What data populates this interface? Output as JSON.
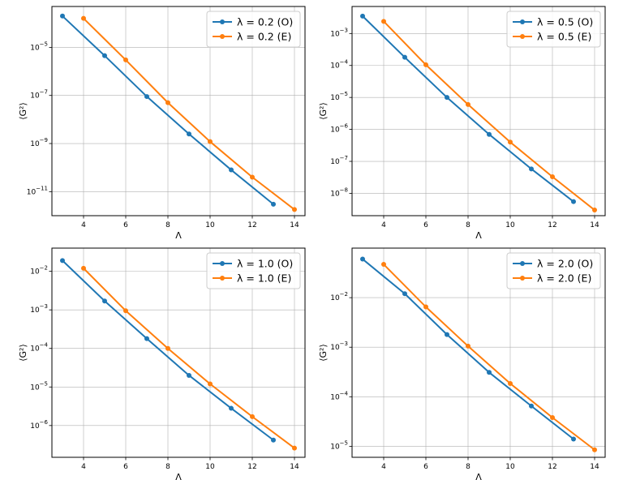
{
  "chart_data": [
    {
      "type": "line",
      "title": "",
      "xlabel": "Λ",
      "ylabel": "⟨G²⟩",
      "xlim": [
        2.5,
        14.5
      ],
      "ylim": [
        1e-12,
        0.0005
      ],
      "yscale": "log",
      "grid": true,
      "legend_position": "top-right",
      "x_ticks": [
        4,
        6,
        8,
        10,
        12,
        14
      ],
      "y_tick_exponents": [
        -5,
        -7,
        -9,
        -11
      ],
      "series": [
        {
          "name": "λ = 0.2 (O)",
          "color": "#1f77b4",
          "x": [
            3,
            5,
            7,
            9,
            11,
            13
          ],
          "y": [
            0.0002,
            4.5e-06,
            9e-08,
            2.5e-09,
            8e-11,
            3e-12
          ]
        },
        {
          "name": "λ = 0.2 (E)",
          "color": "#ff7f0e",
          "x": [
            4,
            6,
            8,
            10,
            12,
            14
          ],
          "y": [
            0.00016,
            3e-06,
            5e-08,
            1.2e-09,
            4e-11,
            1.8e-12
          ]
        }
      ]
    },
    {
      "type": "line",
      "title": "",
      "xlabel": "Λ",
      "ylabel": "⟨G²⟩",
      "xlim": [
        2.5,
        14.5
      ],
      "ylim": [
        2e-09,
        0.007
      ],
      "yscale": "log",
      "grid": true,
      "legend_position": "top-right",
      "x_ticks": [
        4,
        6,
        8,
        10,
        12,
        14
      ],
      "y_tick_exponents": [
        -3,
        -4,
        -5,
        -6,
        -7,
        -8
      ],
      "series": [
        {
          "name": "λ = 0.5 (O)",
          "color": "#1f77b4",
          "x": [
            3,
            5,
            7,
            9,
            11,
            13
          ],
          "y": [
            0.0035,
            0.00018,
            1e-05,
            7e-07,
            5.8e-08,
            5.5e-09
          ]
        },
        {
          "name": "λ = 0.5 (E)",
          "color": "#ff7f0e",
          "x": [
            4,
            6,
            8,
            10,
            12,
            14
          ],
          "y": [
            0.0024,
            0.000105,
            6e-06,
            4e-07,
            3.3e-08,
            3e-09
          ]
        }
      ]
    },
    {
      "type": "line",
      "title": "",
      "xlabel": "Λ",
      "ylabel": "⟨G²⟩",
      "xlim": [
        2.5,
        14.5
      ],
      "ylim": [
        1.5e-07,
        0.04
      ],
      "yscale": "log",
      "grid": true,
      "legend_position": "top-right",
      "x_ticks": [
        4,
        6,
        8,
        10,
        12,
        14
      ],
      "y_tick_exponents": [
        -2,
        -3,
        -4,
        -5,
        -6
      ],
      "series": [
        {
          "name": "λ = 1.0 (O)",
          "color": "#1f77b4",
          "x": [
            3,
            5,
            7,
            9,
            11,
            13
          ],
          "y": [
            0.019,
            0.0017,
            0.00018,
            2e-05,
            2.8e-06,
            4.2e-07
          ]
        },
        {
          "name": "λ = 1.0 (E)",
          "color": "#ff7f0e",
          "x": [
            4,
            6,
            8,
            10,
            12,
            14
          ],
          "y": [
            0.012,
            0.00095,
            0.0001,
            1.2e-05,
            1.7e-06,
            2.6e-07
          ]
        }
      ]
    },
    {
      "type": "line",
      "title": "",
      "xlabel": "Λ",
      "ylabel": "⟨G²⟩",
      "xlim": [
        2.5,
        14.5
      ],
      "ylim": [
        6e-06,
        0.1
      ],
      "yscale": "log",
      "grid": true,
      "legend_position": "top-right",
      "x_ticks": [
        4,
        6,
        8,
        10,
        12,
        14
      ],
      "y_tick_exponents": [
        -2,
        -3,
        -4,
        -5
      ],
      "series": [
        {
          "name": "λ = 2.0 (O)",
          "color": "#1f77b4",
          "x": [
            3,
            5,
            7,
            9,
            11,
            13
          ],
          "y": [
            0.06,
            0.012,
            0.0018,
            0.00031,
            6.5e-05,
            1.4e-05
          ]
        },
        {
          "name": "λ = 2.0 (E)",
          "color": "#ff7f0e",
          "x": [
            4,
            6,
            8,
            10,
            12,
            14
          ],
          "y": [
            0.047,
            0.0065,
            0.00105,
            0.000185,
            3.8e-05,
            8.5e-06
          ]
        }
      ]
    }
  ]
}
